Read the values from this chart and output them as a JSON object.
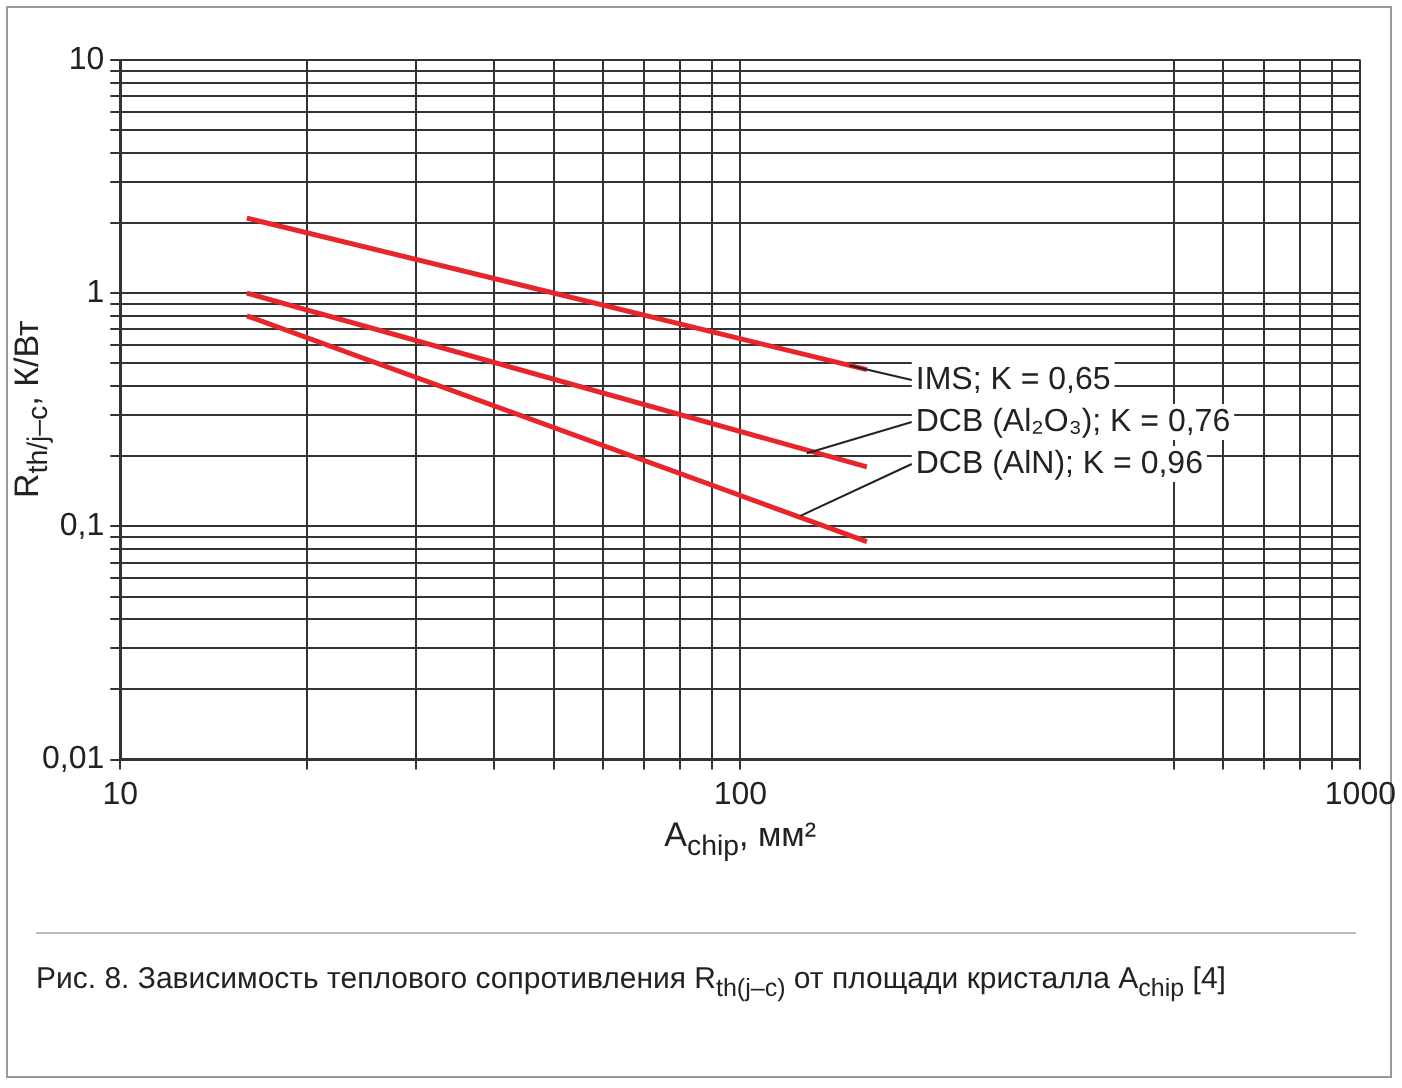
{
  "chart_data": {
    "type": "line",
    "xlabel": "A$_{chip}$, мм²",
    "ylabel": "R$_{th/j–c}$, К/Вт",
    "log": "xy",
    "grid": true,
    "legend": false,
    "marker": "none",
    "line_style": "solid",
    "xlim": [
      10,
      1000
    ],
    "ylim": [
      0.01,
      10
    ],
    "xticks": [
      10,
      {
        "value": 20,
        "label": null
      },
      {
        "value": 30,
        "label": null
      },
      {
        "value": 40,
        "label": null
      },
      {
        "value": 50,
        "label": null
      },
      {
        "value": 60,
        "label": null
      },
      {
        "value": 70,
        "label": null
      },
      {
        "value": 80,
        "label": null
      },
      {
        "value": 90,
        "label": null
      },
      100,
      {
        "value": 500,
        "label": null
      },
      {
        "value": 600,
        "label": null
      },
      {
        "value": 700,
        "label": null
      },
      {
        "value": 800,
        "label": null
      },
      {
        "value": 900,
        "label": null
      },
      1000
    ],
    "yticks": [
      {
        "value": 0.01,
        "label": "0,01"
      },
      {
        "value": 0.02,
        "label": null
      },
      {
        "value": 0.03,
        "label": null
      },
      {
        "value": 0.04,
        "label": null
      },
      {
        "value": 0.05,
        "label": null
      },
      {
        "value": 0.06,
        "label": null
      },
      {
        "value": 0.07,
        "label": null
      },
      {
        "value": 0.08,
        "label": null
      },
      {
        "value": 0.09,
        "label": null
      },
      {
        "value": 0.1,
        "label": "0,1"
      },
      {
        "value": 0.2,
        "label": null
      },
      {
        "value": 0.3,
        "label": null
      },
      {
        "value": 0.4,
        "label": null
      },
      {
        "value": 0.5,
        "label": null
      },
      {
        "value": 0.6,
        "label": null
      },
      {
        "value": 0.7,
        "label": null
      },
      {
        "value": 0.8,
        "label": null
      },
      {
        "value": 0.9,
        "label": null
      },
      1,
      {
        "value": 2,
        "label": null
      },
      {
        "value": 3,
        "label": null
      },
      {
        "value": 4,
        "label": null
      },
      {
        "value": 5,
        "label": null
      },
      {
        "value": 6,
        "label": null
      },
      {
        "value": 7,
        "label": null
      },
      {
        "value": 8,
        "label": null
      },
      {
        "value": 9,
        "label": null
      },
      10
    ],
    "x": [
      16,
      160
    ],
    "series": [
      {
        "color": "#e8252a",
        "values": [
          2.1,
          0.47
        ]
      },
      {
        "color": "#e8252a",
        "values": [
          1.0,
          0.18
        ]
      },
      {
        "color": "#e8252a",
        "values": [
          0.8,
          0.086
        ]
      }
    ],
    "annotations": [
      {
        "text": "IMS; K = 0,65",
        "x": 150,
        "y": 0.49
      },
      {
        "text": "DCB (Al₂O₃); K = 0,76",
        "x": 128,
        "y": 0.206
      },
      {
        "text": "DCB (AlN); K = 0,96",
        "x": 125,
        "y": 0.111
      },
      "Рис. 8. Зависимость теплового сопротивления R$_{th(j–c)}$ от площади кристалла A$_{chip}$ [4]"
    ]
  }
}
